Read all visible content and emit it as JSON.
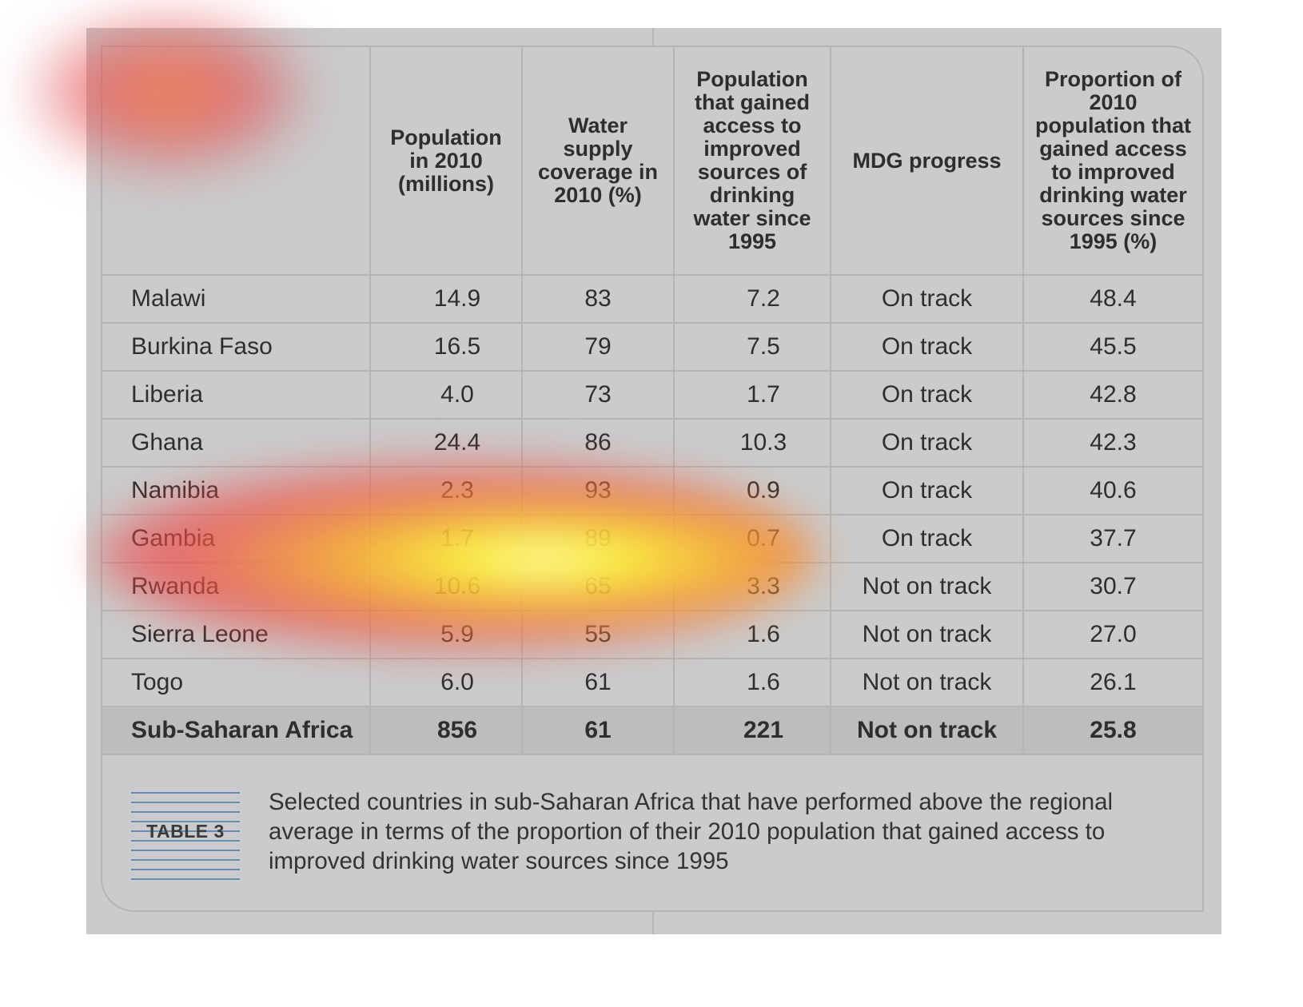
{
  "headers": [
    "",
    "Population in 2010 (millions)",
    "Water supply coverage in 2010 (%)",
    "Population that gained access to improved sources of drinking water since 1995",
    "MDG progress",
    "Proportion of 2010 population that gained access to improved drinking water sources since 1995 (%)"
  ],
  "rows": [
    [
      "Malawi",
      "14.9",
      "83",
      "7.2",
      "On track",
      "48.4"
    ],
    [
      "Burkina Faso",
      "16.5",
      "79",
      "7.5",
      "On track",
      "45.5"
    ],
    [
      "Liberia",
      "4.0",
      "73",
      "1.7",
      "On track",
      "42.8"
    ],
    [
      "Ghana",
      "24.4",
      "86",
      "10.3",
      "On track",
      "42.3"
    ],
    [
      "Namibia",
      "2.3",
      "93",
      "0.9",
      "On track",
      "40.6"
    ],
    [
      "Gambia",
      "1.7",
      "89",
      "0.7",
      "On track",
      "37.7"
    ],
    [
      "Rwanda",
      "10.6",
      "65",
      "3.3",
      "Not on track",
      "30.7"
    ],
    [
      "Sierra Leone",
      "5.9",
      "55",
      "1.6",
      "Not on track",
      "27.0"
    ],
    [
      "Togo",
      "6.0",
      "61",
      "1.6",
      "Not on track",
      "26.1"
    ]
  ],
  "total_row": [
    "Sub-Saharan Africa",
    "856",
    "61",
    "221",
    "Not on track",
    "25.8"
  ],
  "footer": {
    "badge": "TABLE 3",
    "caption": "Selected countries in sub-Saharan Africa that have performed above the regional average in terms of the proportion of their 2010 population that gained access to improved drinking water sources since 1995"
  },
  "colors": {
    "panel_background": "#cbcbcb",
    "total_row_background": "#bdbdbd",
    "badge_lines": "#5d8fb8",
    "heat_hot": "#fcfa3c",
    "heat_warm": "#ee4646"
  }
}
